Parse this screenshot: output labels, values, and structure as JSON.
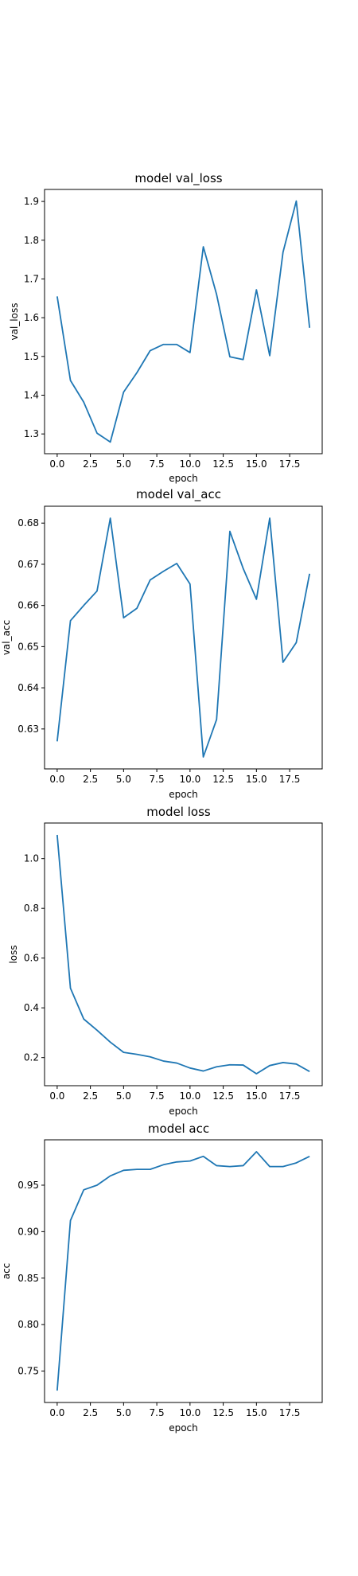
{
  "figure": {
    "line_color": "#1f77b4",
    "background": "#ffffff"
  },
  "chart_data": [
    {
      "type": "line",
      "title": "model val_loss",
      "xlabel": "epoch",
      "ylabel": "val_loss",
      "x": [
        0,
        1,
        2,
        3,
        4,
        5,
        6,
        7,
        8,
        9,
        10,
        11,
        12,
        13,
        14,
        15,
        16,
        17,
        18,
        19
      ],
      "series": [
        {
          "values": [
            1.655,
            1.438,
            1.382,
            1.302,
            1.279,
            1.408,
            1.458,
            1.515,
            1.531,
            1.531,
            1.51,
            1.783,
            1.66,
            1.499,
            1.492,
            1.672,
            1.502,
            1.769,
            1.901,
            1.574
          ]
        }
      ],
      "xlim": [
        -0.95,
        19.95
      ],
      "ylim": [
        1.249,
        1.931
      ],
      "xticks": [
        0,
        2.5,
        5,
        7.5,
        10,
        12.5,
        15,
        17.5
      ],
      "xtick_labels": [
        "0.0",
        "2.5",
        "5.0",
        "7.5",
        "10.0",
        "12.5",
        "15.0",
        "17.5"
      ],
      "yticks": [
        1.3,
        1.4,
        1.5,
        1.6,
        1.7,
        1.8,
        1.9
      ],
      "ytick_labels": [
        "1.3",
        "1.4",
        "1.5",
        "1.6",
        "1.7",
        "1.8",
        "1.9"
      ],
      "grid": false
    },
    {
      "type": "line",
      "title": "model val_acc",
      "xlabel": "epoch",
      "ylabel": "val_acc",
      "x": [
        0,
        1,
        2,
        3,
        4,
        5,
        6,
        7,
        8,
        9,
        10,
        11,
        12,
        13,
        14,
        15,
        16,
        17,
        18,
        19
      ],
      "series": [
        {
          "values": [
            0.627,
            0.6563,
            0.66,
            0.6635,
            0.6812,
            0.657,
            0.6593,
            0.6662,
            0.6683,
            0.6702,
            0.6652,
            0.6232,
            0.6323,
            0.678,
            0.669,
            0.6615,
            0.6812,
            0.6462,
            0.651,
            0.6677
          ]
        }
      ],
      "xlim": [
        -0.95,
        19.95
      ],
      "ylim": [
        0.6203,
        0.6841
      ],
      "xticks": [
        0,
        2.5,
        5,
        7.5,
        10,
        12.5,
        15,
        17.5
      ],
      "xtick_labels": [
        "0.0",
        "2.5",
        "5.0",
        "7.5",
        "10.0",
        "12.5",
        "15.0",
        "17.5"
      ],
      "yticks": [
        0.63,
        0.64,
        0.65,
        0.66,
        0.67,
        0.68
      ],
      "ytick_labels": [
        "0.63",
        "0.64",
        "0.65",
        "0.66",
        "0.67",
        "0.68"
      ],
      "grid": false
    },
    {
      "type": "line",
      "title": "model loss",
      "xlabel": "epoch",
      "ylabel": "loss",
      "x": [
        0,
        1,
        2,
        3,
        4,
        5,
        6,
        7,
        8,
        9,
        10,
        11,
        12,
        13,
        14,
        15,
        16,
        17,
        18,
        19
      ],
      "series": [
        {
          "values": [
            1.095,
            0.479,
            0.355,
            0.31,
            0.262,
            0.221,
            0.213,
            0.203,
            0.186,
            0.178,
            0.158,
            0.146,
            0.163,
            0.171,
            0.17,
            0.135,
            0.168,
            0.18,
            0.174,
            0.144
          ]
        }
      ],
      "xlim": [
        -0.95,
        19.95
      ],
      "ylim": [
        0.087,
        1.143
      ],
      "xticks": [
        0,
        2.5,
        5,
        7.5,
        10,
        12.5,
        15,
        17.5
      ],
      "xtick_labels": [
        "0.0",
        "2.5",
        "5.0",
        "7.5",
        "10.0",
        "12.5",
        "15.0",
        "17.5"
      ],
      "yticks": [
        0.2,
        0.4,
        0.6,
        0.8,
        1.0
      ],
      "ytick_labels": [
        "0.2",
        "0.4",
        "0.6",
        "0.8",
        "1.0"
      ],
      "grid": false
    },
    {
      "type": "line",
      "title": "model acc",
      "xlabel": "epoch",
      "ylabel": "acc",
      "x": [
        0,
        1,
        2,
        3,
        4,
        5,
        6,
        7,
        8,
        9,
        10,
        11,
        12,
        13,
        14,
        15,
        16,
        17,
        18,
        19
      ],
      "series": [
        {
          "values": [
            0.729,
            0.912,
            0.945,
            0.95,
            0.96,
            0.966,
            0.967,
            0.967,
            0.972,
            0.975,
            0.976,
            0.981,
            0.971,
            0.97,
            0.971,
            0.986,
            0.97,
            0.97,
            0.974,
            0.981
          ]
        }
      ],
      "xlim": [
        -0.95,
        19.95
      ],
      "ylim": [
        0.7162,
        0.9988
      ],
      "xticks": [
        0,
        2.5,
        5,
        7.5,
        10,
        12.5,
        15,
        17.5
      ],
      "xtick_labels": [
        "0.0",
        "2.5",
        "5.0",
        "7.5",
        "10.0",
        "12.5",
        "15.0",
        "17.5"
      ],
      "yticks": [
        0.75,
        0.8,
        0.85,
        0.9,
        0.95
      ],
      "ytick_labels": [
        "0.75",
        "0.80",
        "0.85",
        "0.90",
        "0.95"
      ],
      "grid": false
    }
  ]
}
